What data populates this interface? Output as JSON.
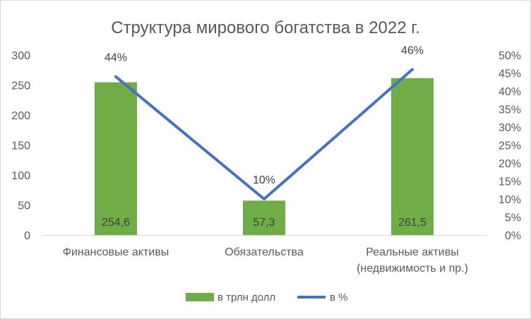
{
  "chart_data": {
    "type": "bar",
    "title": "Структура мирового богатства в 2022 г.",
    "categories": [
      [
        "Финансовые активы"
      ],
      [
        "Обязательства"
      ],
      [
        "Реальные активы",
        "(недвижимость и пр.)"
      ]
    ],
    "series": [
      {
        "name": "в трлн долл",
        "type": "bar",
        "axis": "left",
        "values": [
          254.6,
          57.3,
          261.5
        ],
        "labels": [
          "254,6",
          "57,3",
          "261,5"
        ],
        "color": "#70ad47"
      },
      {
        "name": "в %",
        "type": "line",
        "axis": "right",
        "values": [
          44,
          10,
          46
        ],
        "labels": [
          "44%",
          "10%",
          "46%"
        ],
        "color": "#4472c4"
      }
    ],
    "y_left": {
      "min": 0,
      "max": 300,
      "step": 50,
      "ticks": [
        "0",
        "50",
        "100",
        "150",
        "200",
        "250",
        "300"
      ]
    },
    "y_right": {
      "min": 0,
      "max": 50,
      "step": 5,
      "ticks": [
        "0%",
        "5%",
        "10%",
        "15%",
        "20%",
        "25%",
        "30%",
        "35%",
        "40%",
        "45%",
        "50%"
      ]
    },
    "grid": false,
    "legend_position": "bottom"
  }
}
